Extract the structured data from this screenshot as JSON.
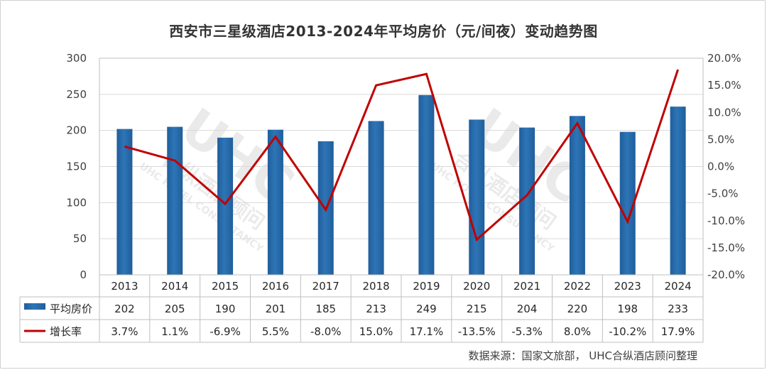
{
  "title": "西安市三星级酒店2013-2024年平均房价（元/间夜）变动趋势图",
  "source": "数据来源：国家文旅部， UHC合纵酒店顾问整理",
  "watermark": {
    "logo": "UHC",
    "cn": "合纵酒店顾问",
    "en": "UHC HOTEL CONSULTANCY"
  },
  "colors": {
    "bar": "#2e75b6",
    "bar_dark": "#1f5e9c",
    "line": "#c00000",
    "grid": "#d9d9d9"
  },
  "chart_data": {
    "type": "bar",
    "title": "西安市三星级酒店2013-2024年平均房价（元/间夜）变动趋势图",
    "categories": [
      "2013",
      "2014",
      "2015",
      "2016",
      "2017",
      "2018",
      "2019",
      "2020",
      "2021",
      "2022",
      "2023",
      "2024"
    ],
    "series": [
      {
        "name": "平均房价",
        "type": "bar",
        "axis": "left",
        "values": [
          202,
          205,
          190,
          201,
          185,
          213,
          249,
          215,
          204,
          220,
          198,
          233
        ],
        "labels": [
          "202",
          "205",
          "190",
          "201",
          "185",
          "213",
          "249",
          "215",
          "204",
          "220",
          "198",
          "233"
        ]
      },
      {
        "name": "增长率",
        "type": "line",
        "axis": "right",
        "values": [
          3.7,
          1.1,
          -6.9,
          5.5,
          -8.0,
          15.0,
          17.1,
          -13.5,
          -5.3,
          8.0,
          -10.2,
          17.9
        ],
        "labels": [
          "3.7%",
          "1.1%",
          "-6.9%",
          "5.5%",
          "-8.0%",
          "15.0%",
          "17.1%",
          "-13.5%",
          "-5.3%",
          "8.0%",
          "-10.2%",
          "17.9%"
        ]
      }
    ],
    "y_left": {
      "ylim": [
        0,
        300
      ],
      "ticks": [
        0,
        50,
        100,
        150,
        200,
        250,
        300
      ],
      "tick_labels": [
        "0",
        "50",
        "100",
        "150",
        "200",
        "250",
        "300"
      ]
    },
    "y_right": {
      "ylim": [
        -20,
        20
      ],
      "ticks": [
        -20,
        -15,
        -10,
        -5,
        0,
        5,
        10,
        15,
        20
      ],
      "tick_labels": [
        "-20.0%",
        "-15.0%",
        "-10.0%",
        "-5.0%",
        "0.0%",
        "5.0%",
        "10.0%",
        "15.0%",
        "20.0%"
      ]
    },
    "grid": true,
    "legend": "data-table-left"
  }
}
